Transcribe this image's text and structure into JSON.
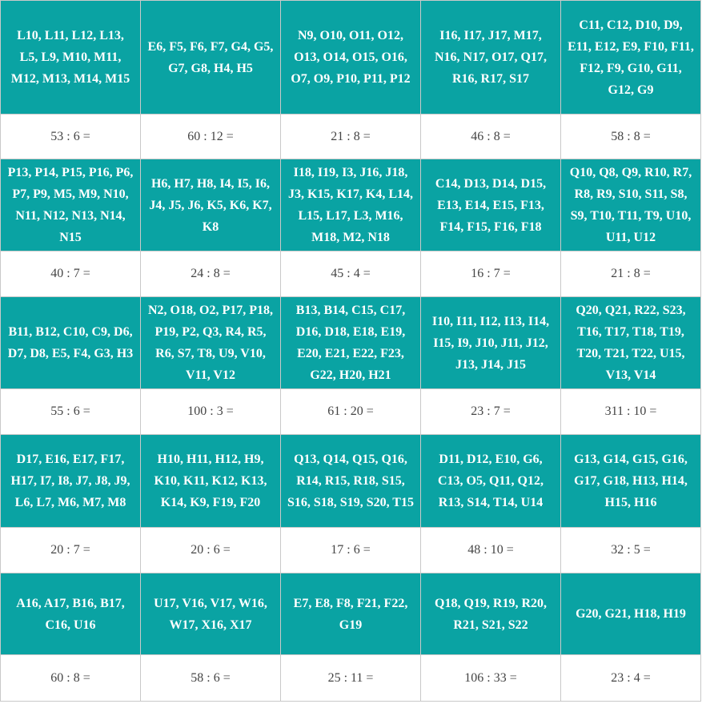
{
  "grid": {
    "rows": [
      {
        "cells": [
          "L10, L11, L12, L13, L5, L9, M10, M11, M12, M13, M14, M15",
          "E6, F5, F6, F7, G4, G5, G7, G8, H4, H5",
          "N9, O10, O11, O12, O13, O14, O15, O16, O7, O9, P10, P11, P12",
          "I16, I17, J17, M17, N16, N17, O17, Q17, R16, R17, S17",
          "C11, C12, D10, D9, E11, E12, E9, F10, F11, F12, F9, G10, G11, G12, G9"
        ],
        "divisions": [
          "53 : 6 =",
          "60 : 12 =",
          "21 : 8 =",
          "46 : 8 =",
          "58 : 8 ="
        ]
      },
      {
        "cells": [
          "P13, P14, P15, P16, P6, P7, P9, M5, M9, N10, N11, N12, N13, N14, N15",
          "H6, H7, H8, I4, I5, I6, J4, J5, J6, K5, K6, K7, K8",
          "I18, I19, I3, J16, J18, J3, K15, K17, K4, L14, L15, L17, L3, M16, M18, M2, N18",
          "C14, D13, D14, D15, E13, E14, E15, F13, F14, F15, F16, F18",
          "Q10, Q8, Q9, R10, R7, R8, R9, S10, S11, S8, S9, T10, T11, T9, U10, U11, U12"
        ],
        "divisions": [
          "40 : 7 =",
          "24 : 8 =",
          "45 : 4 =",
          "16 : 7 =",
          "21 : 8 ="
        ]
      },
      {
        "cells": [
          "B11, B12, C10, C9, D6, D7, D8, E5, F4, G3, H3",
          "N2, O18, O2, P17, P18, P19, P2, Q3, R4, R5, R6, S7, T8, U9, V10, V11, V12",
          "B13, B14, C15, C17, D16, D18, E18, E19, E20, E21, E22, F23, G22, H20, H21",
          "I10, I11, I12, I13, I14, I15, I9, J10, J11, J12, J13, J14, J15",
          "Q20, Q21, R22, S23, T16, T17, T18, T19, T20, T21, T22, U15, V13, V14"
        ],
        "divisions": [
          "55 : 6 =",
          "100 : 3 =",
          "61 : 20 =",
          "23 : 7 =",
          "311 : 10 ="
        ]
      },
      {
        "cells": [
          "D17, E16, E17, F17, H17, I7, I8, J7, J8, J9, L6, L7, M6, M7, M8",
          "H10, H11, H12, H9, K10, K11, K12, K13, K14, K9, F19, F20",
          "Q13, Q14, Q15, Q16, R14, R15, R18, S15, S16, S18, S19, S20, T15",
          "D11, D12, E10, G6, C13, O5, Q11, Q12, R13, S14, T14, U14",
          "G13, G14, G15, G16, G17, G18, H13, H14, H15, H16"
        ],
        "divisions": [
          "20 : 7 =",
          "20 : 6 =",
          "17 : 6 =",
          "48 : 10 =",
          "32 : 5 ="
        ]
      },
      {
        "cells": [
          "A16, A17, B16, B17, C16, U16",
          "U17, V16, V17, W16, W17, X16, X17",
          "E7, E8, F8, F21, F22, G19",
          "Q18, Q19, R19, R20, R21, S21, S22",
          "G20, G21, H18, H19"
        ],
        "divisions": [
          "60 : 8 =",
          "58 : 6 =",
          "25 : 11 =",
          "106 : 33 =",
          "23 : 4 ="
        ]
      }
    ]
  }
}
